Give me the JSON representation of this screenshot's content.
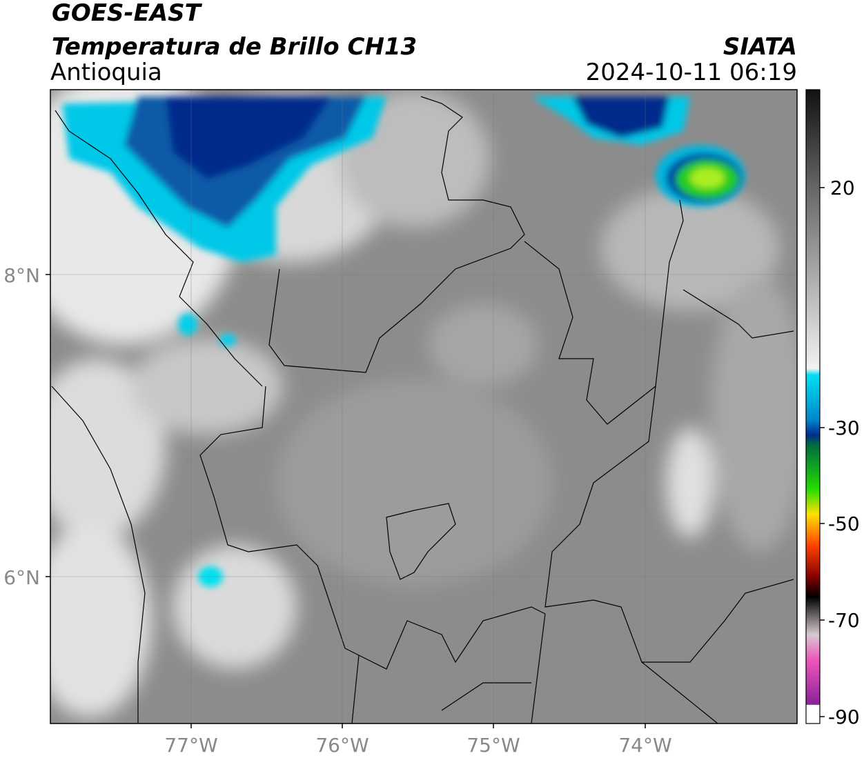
{
  "header": {
    "satellite": "GOES-EAST",
    "product": "Temperatura de Brillo CH13",
    "region": "Antioquia",
    "agency": "SIATA",
    "datetime": "2024-10-11 06:19"
  },
  "map": {
    "lat_labels": [
      "8°N",
      "6°N"
    ],
    "lon_labels": [
      "77°W",
      "76°W",
      "75°W",
      "74°W"
    ]
  },
  "colorbar": {
    "tick_labels": [
      "20",
      "-30",
      "-50",
      "-70",
      "-90"
    ]
  }
}
